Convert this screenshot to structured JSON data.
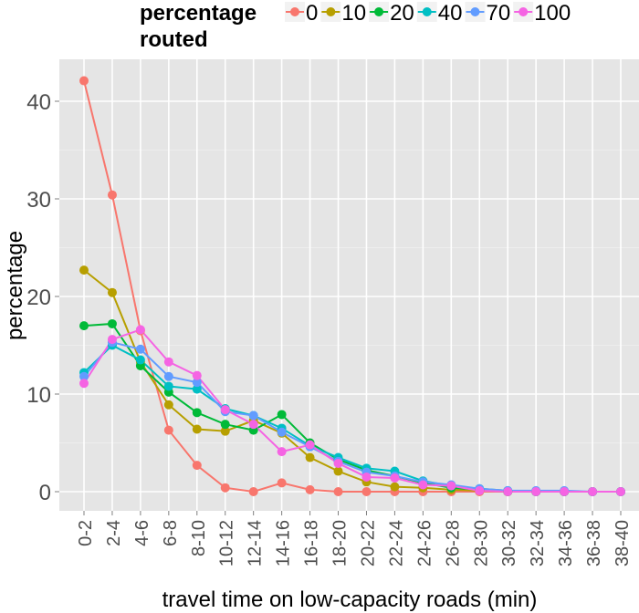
{
  "chart_data": {
    "type": "line",
    "title": "",
    "xlabel": "travel time on low-capacity roads (min)",
    "ylabel": "percentage",
    "ylim": [
      -2,
      45
    ],
    "yticks": [
      0,
      10,
      20,
      30,
      40
    ],
    "grid": true,
    "legend": {
      "title_line1": "percentage",
      "title_line2": "routed",
      "placement": "top"
    },
    "categories": [
      "0-2",
      "2-4",
      "4-6",
      "6-8",
      "8-10",
      "10-12",
      "12-14",
      "14-16",
      "16-18",
      "18-20",
      "20-22",
      "22-24",
      "24-26",
      "26-28",
      "28-30",
      "30-32",
      "32-34",
      "34-36",
      "36-38",
      "38-40"
    ],
    "series": [
      {
        "name": "0",
        "color": "#F8766D",
        "values": [
          42.1,
          30.4,
          16.5,
          6.3,
          2.7,
          0.4,
          0.0,
          0.9,
          0.2,
          0,
          0,
          0,
          0,
          0,
          0,
          0,
          0,
          0,
          0,
          0
        ]
      },
      {
        "name": "10",
        "color": "#B79F00",
        "values": [
          22.7,
          20.4,
          13.3,
          8.9,
          6.4,
          6.2,
          7.3,
          6.0,
          3.5,
          2.1,
          1.0,
          0.5,
          0.4,
          0.2,
          0.1,
          0,
          0,
          0,
          0,
          0
        ]
      },
      {
        "name": "20",
        "color": "#00BA38",
        "values": [
          17.0,
          17.2,
          12.9,
          10.2,
          8.1,
          6.9,
          6.3,
          7.9,
          5.0,
          3.3,
          2.2,
          1.6,
          0.9,
          0.4,
          0.2,
          0,
          0,
          0,
          0,
          0
        ]
      },
      {
        "name": "40",
        "color": "#00BFC4",
        "values": [
          12.2,
          15.0,
          13.5,
          10.8,
          10.5,
          8.5,
          7.8,
          6.5,
          4.7,
          3.5,
          2.4,
          2.1,
          1.1,
          0.6,
          0.3,
          0.1,
          0,
          0,
          0,
          0
        ]
      },
      {
        "name": "70",
        "color": "#619CFF",
        "values": [
          11.8,
          15.3,
          14.6,
          11.8,
          11.2,
          8.2,
          7.8,
          6.1,
          4.6,
          3.1,
          2.0,
          1.6,
          1.0,
          0.7,
          0.3,
          0.1,
          0.1,
          0.1,
          0,
          0
        ]
      },
      {
        "name": "100",
        "color": "#F564E3",
        "values": [
          11.1,
          15.6,
          16.6,
          13.3,
          11.9,
          8.4,
          6.9,
          4.1,
          4.8,
          2.9,
          1.5,
          1.4,
          0.7,
          0.6,
          0.1,
          0,
          0,
          0,
          0,
          0
        ]
      }
    ]
  }
}
